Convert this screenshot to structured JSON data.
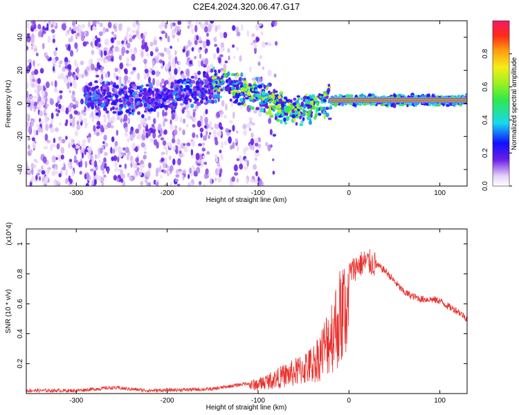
{
  "title": "C2E4.2024.320.06.47.G17",
  "chart_data": [
    {
      "type": "heatmap",
      "xlabel": "Height of straight line (km)",
      "ylabel": "Frequency (Hz)",
      "xlim": [
        -355,
        130
      ],
      "ylim": [
        -50,
        50
      ],
      "xticks": [
        -300,
        -200,
        -100,
        0,
        100
      ],
      "yticks": [
        -40,
        -20,
        0,
        20,
        40
      ],
      "colorbar": {
        "label": "Normalized spectral amplitude",
        "range": [
          0,
          1
        ],
        "ticks": [
          0.0,
          0.2,
          0.4,
          0.6,
          0.8
        ]
      },
      "ridge": [
        {
          "x": -270,
          "y": 4
        },
        {
          "x": -240,
          "y": 3
        },
        {
          "x": -210,
          "y": 2
        },
        {
          "x": -140,
          "y": 12
        },
        {
          "x": -120,
          "y": 9
        },
        {
          "x": -100,
          "y": 5
        },
        {
          "x": -80,
          "y": 0
        },
        {
          "x": -60,
          "y": -5
        },
        {
          "x": -45,
          "y": -3
        },
        {
          "x": -30,
          "y": 1
        },
        {
          "x": -10,
          "y": 2
        },
        {
          "x": 0,
          "y": 2
        },
        {
          "x": 50,
          "y": 2
        },
        {
          "x": 100,
          "y": 2
        },
        {
          "x": 130,
          "y": 2
        }
      ]
    },
    {
      "type": "line",
      "xlabel": "Height of straight line (km)",
      "ylabel": "SNR (10 * v/v)",
      "y_multiplier": "(x10^4)",
      "xlim": [
        -355,
        130
      ],
      "ylim": [
        0,
        1.1
      ],
      "xticks": [
        -300,
        -200,
        -100,
        0,
        100
      ],
      "yticks": [
        0.2,
        0.4,
        0.6,
        0.8,
        1.0
      ],
      "color": "#e8302c",
      "series": [
        {
          "x": [
            -355,
            -300,
            -260,
            -220,
            -150,
            -130,
            -100,
            -80,
            -60,
            -40,
            -30,
            -20,
            -10,
            0,
            10,
            20,
            30,
            40,
            50,
            60,
            70,
            80,
            90,
            100,
            110,
            120,
            130
          ],
          "y": [
            0.02,
            0.02,
            0.04,
            0.02,
            0.03,
            0.05,
            0.08,
            0.13,
            0.18,
            0.25,
            0.35,
            0.5,
            0.65,
            0.8,
            0.86,
            0.88,
            0.86,
            0.82,
            0.75,
            0.68,
            0.65,
            0.63,
            0.63,
            0.62,
            0.58,
            0.55,
            0.5
          ]
        }
      ]
    }
  ]
}
